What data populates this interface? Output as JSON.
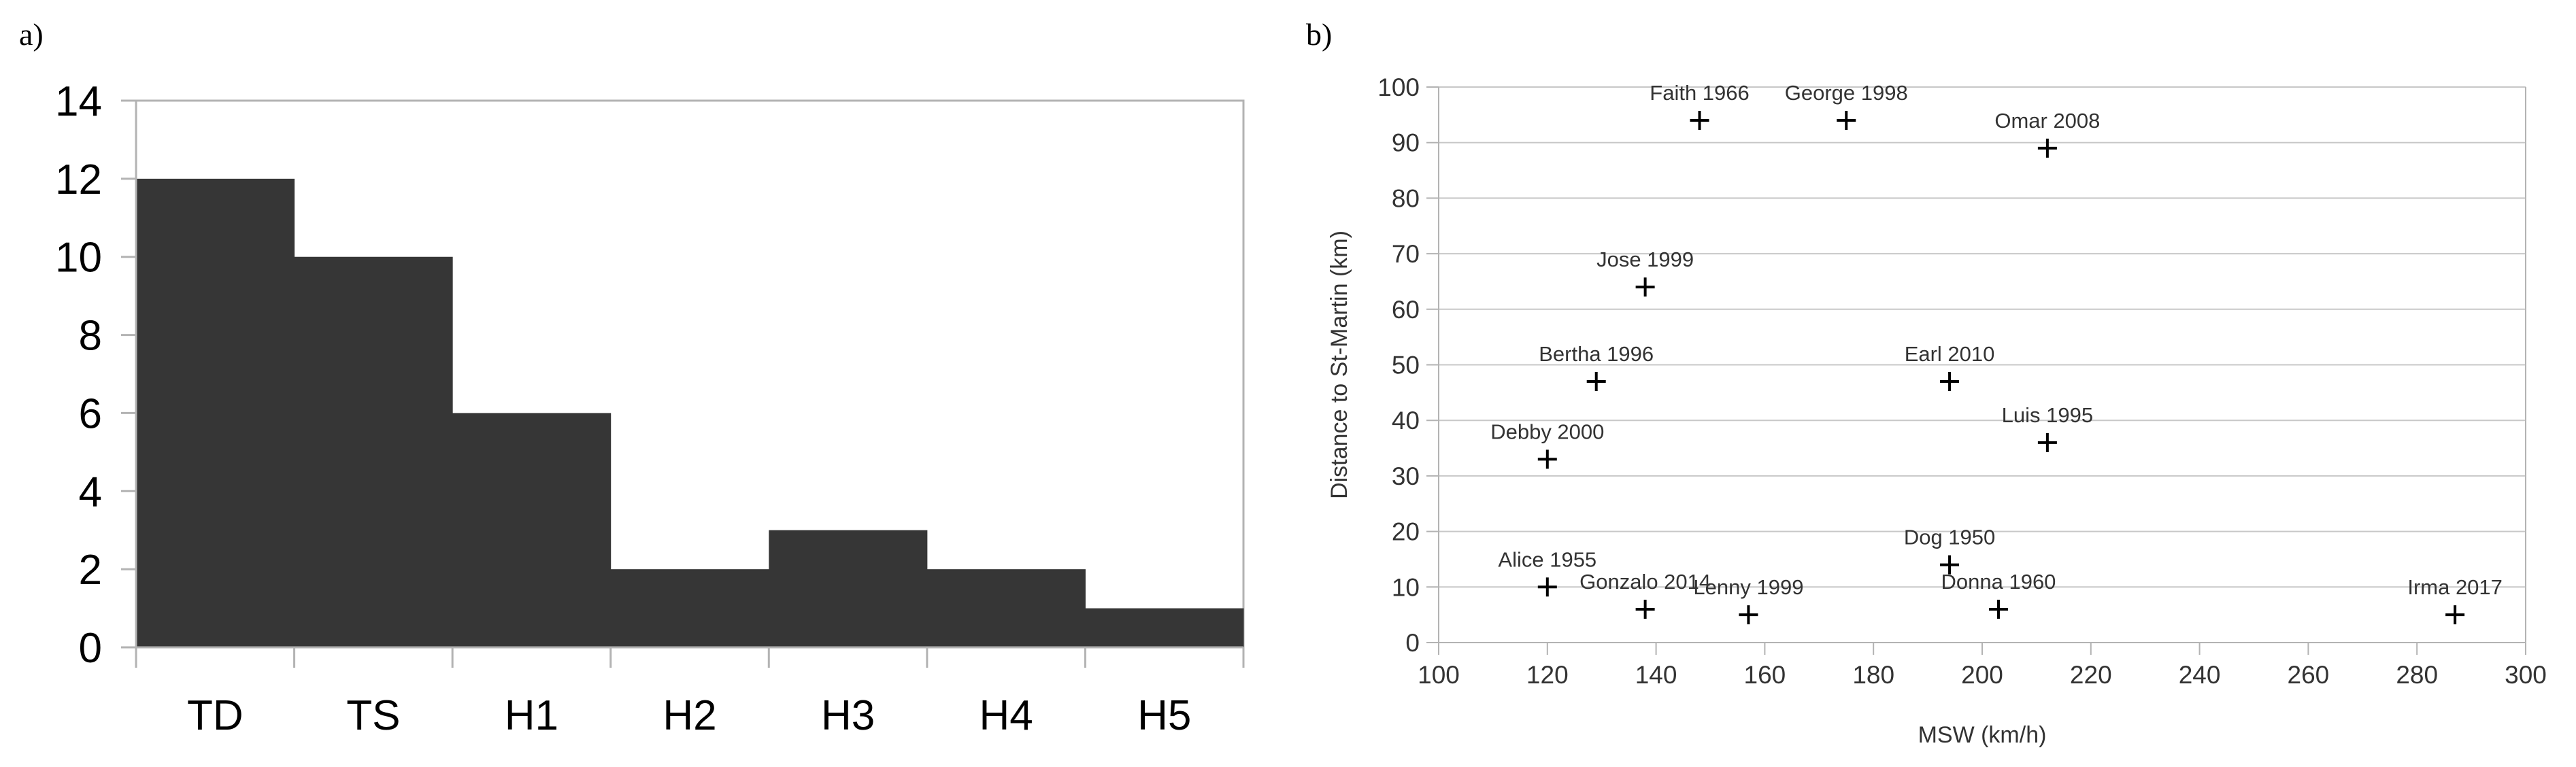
{
  "panel_labels": {
    "a": "a)",
    "b": "b)"
  },
  "colors": {
    "bar_fill": "#363636",
    "axis": "#000000",
    "grid": "#c8c8c8",
    "marker": "#000000",
    "text": "#333333"
  },
  "chart_data": [
    {
      "type": "bar",
      "categories": [
        "TD",
        "TS",
        "H1",
        "H2",
        "H3",
        "H4",
        "H5"
      ],
      "values": [
        12,
        10,
        6,
        2,
        3,
        2,
        1
      ],
      "title": "",
      "xlabel": "",
      "ylabel": "",
      "ylim": [
        0,
        14
      ],
      "yticks": [
        0,
        2,
        4,
        6,
        8,
        10,
        12,
        14
      ],
      "grid": false
    },
    {
      "type": "scatter",
      "title": "",
      "xlabel": "MSW (km/h)",
      "ylabel": "Distance to St-Martin (km)",
      "xlim": [
        100,
        300
      ],
      "ylim": [
        0,
        100
      ],
      "xticks": [
        100,
        120,
        140,
        160,
        180,
        200,
        220,
        240,
        260,
        280,
        300
      ],
      "yticks": [
        0,
        10,
        20,
        30,
        40,
        50,
        60,
        70,
        80,
        90,
        100
      ],
      "grid": true,
      "marker": "plus",
      "points": [
        {
          "label": "Faith 1966",
          "x": 148,
          "y": 94
        },
        {
          "label": "George 1998",
          "x": 175,
          "y": 94
        },
        {
          "label": "Omar 2008",
          "x": 212,
          "y": 89
        },
        {
          "label": "Jose 1999",
          "x": 138,
          "y": 64
        },
        {
          "label": "Bertha 1996",
          "x": 129,
          "y": 47
        },
        {
          "label": "Earl 2010",
          "x": 194,
          "y": 47
        },
        {
          "label": "Luis 1995",
          "x": 212,
          "y": 36
        },
        {
          "label": "Debby 2000",
          "x": 120,
          "y": 33
        },
        {
          "label": "Dog 1950",
          "x": 194,
          "y": 14
        },
        {
          "label": "Alice 1955",
          "x": 120,
          "y": 10
        },
        {
          "label": "Gonzalo 2014",
          "x": 138,
          "y": 6
        },
        {
          "label": "Lenny 1999",
          "x": 157,
          "y": 5
        },
        {
          "label": "Donna 1960",
          "x": 203,
          "y": 6
        },
        {
          "label": "Irma 2017",
          "x": 287,
          "y": 5
        }
      ]
    }
  ]
}
